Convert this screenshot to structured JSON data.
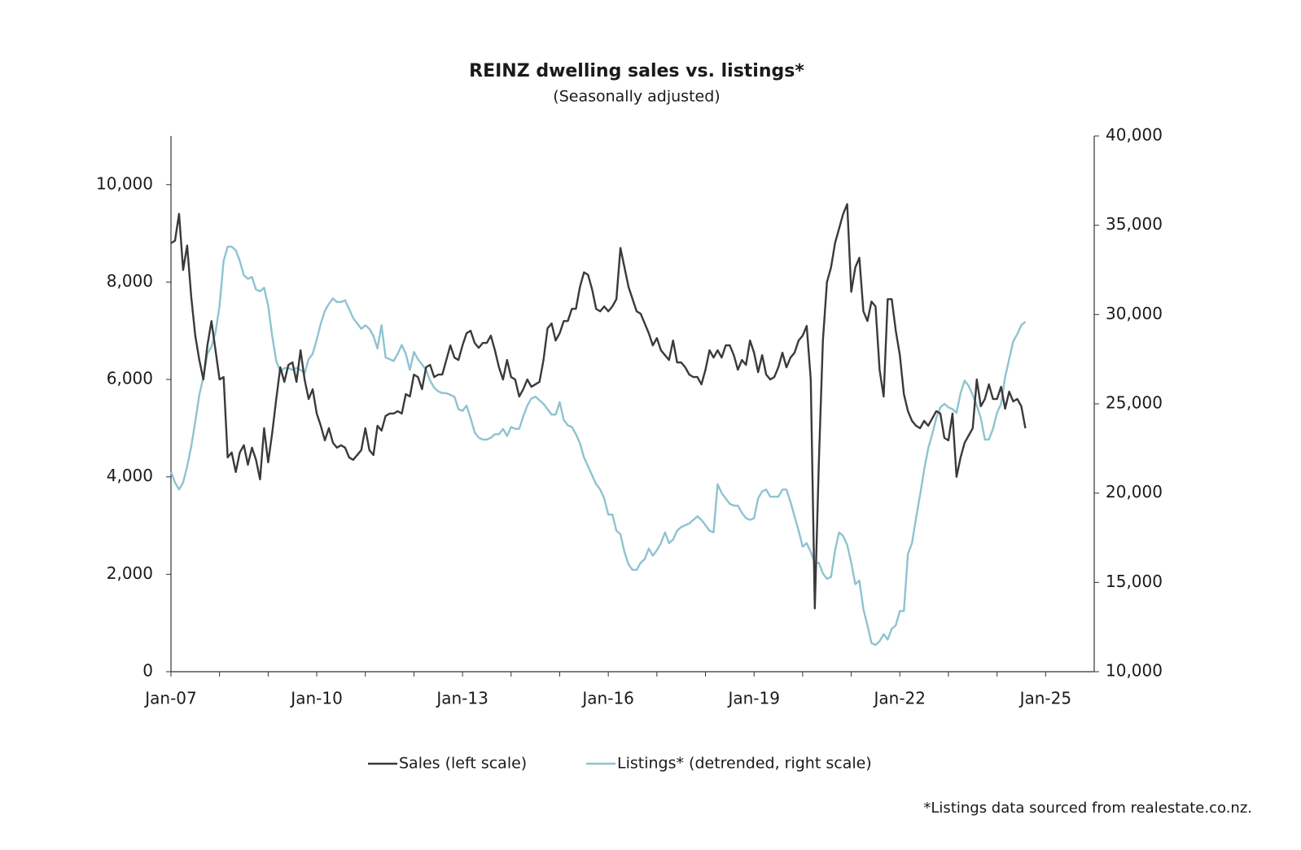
{
  "chart_data": {
    "type": "line",
    "title": "REINZ dwelling sales vs. listings*",
    "subtitle": "(Seasonally adjusted)",
    "footnote": "*Listings data sourced from realestate.co.nz.",
    "categories": [
      "Jan-07",
      null,
      null,
      null,
      null,
      null,
      null,
      null,
      null,
      null,
      null,
      null,
      null,
      null,
      null,
      null,
      null,
      null,
      null,
      null,
      null,
      null,
      null,
      null,
      null,
      null,
      null,
      null,
      null,
      null,
      null,
      null,
      null,
      null,
      null,
      null,
      "Jan-10",
      null,
      null,
      null,
      null,
      null,
      null,
      null,
      null,
      null,
      null,
      null,
      null,
      null,
      null,
      null,
      null,
      null,
      null,
      null,
      null,
      null,
      null,
      null,
      null,
      null,
      null,
      null,
      null,
      null,
      null,
      null,
      null,
      null,
      null,
      null,
      "Jan-13",
      null,
      null,
      null,
      null,
      null,
      null,
      null,
      null,
      null,
      null,
      null,
      null,
      null,
      null,
      null,
      null,
      null,
      null,
      null,
      null,
      null,
      null,
      null,
      null,
      null,
      null,
      null,
      null,
      null,
      null,
      null,
      null,
      null,
      null,
      null,
      "Jan-16",
      null,
      null,
      null,
      null,
      null,
      null,
      null,
      null,
      null,
      null,
      null,
      null,
      null,
      null,
      null,
      null,
      null,
      null,
      null,
      null,
      null,
      null,
      null,
      null,
      null,
      null,
      null,
      null,
      null,
      null,
      null,
      null,
      null,
      null,
      null,
      "Jan-19",
      null,
      null,
      null,
      null,
      null,
      null,
      null,
      null,
      null,
      null,
      null,
      null,
      null,
      null,
      null,
      null,
      null,
      null,
      null,
      null,
      null,
      null,
      null,
      null,
      null,
      null,
      null,
      null,
      null,
      null,
      null,
      null,
      null,
      null,
      null,
      "Jan-22",
      null,
      null,
      null,
      null,
      null,
      null,
      null,
      null,
      null,
      null,
      null,
      null,
      null,
      null,
      null,
      null,
      null,
      null,
      null,
      null,
      null,
      null,
      null,
      null,
      null,
      null,
      null,
      null,
      null,
      null,
      null,
      null,
      null,
      null,
      null,
      "Jan-25",
      null,
      null,
      null,
      null,
      null,
      null,
      null,
      null,
      null,
      null,
      null
    ],
    "series": [
      {
        "name": "Sales (left scale)",
        "color": "#3a3a3c",
        "values": [
          8800,
          8850,
          9400,
          8250,
          8750,
          7700,
          6900,
          6400,
          6000,
          6700,
          7200,
          6600,
          6000,
          6050,
          4400,
          4500,
          4100,
          4500,
          4650,
          4250,
          4600,
          4350,
          3950,
          5000,
          4300,
          4900,
          5600,
          6250,
          5950,
          6300,
          6350,
          5950,
          6600,
          6000,
          5600,
          5800,
          5300,
          5050,
          4750,
          5000,
          4700,
          4600,
          4650,
          4600,
          4400,
          4350,
          4450,
          4550,
          5000,
          4550,
          4450,
          5050,
          4950,
          5250,
          5300,
          5300,
          5350,
          5300,
          5700,
          5650,
          6100,
          6050,
          5800,
          6250,
          6300,
          6050,
          6100,
          6100,
          6400,
          6700,
          6450,
          6400,
          6700,
          6950,
          7000,
          6750,
          6650,
          6750,
          6750,
          6900,
          6600,
          6250,
          6000,
          6400,
          6050,
          6000,
          5650,
          5800,
          6000,
          5850,
          5900,
          5950,
          6400,
          7050,
          7150,
          6800,
          6950,
          7200,
          7200,
          7450,
          7450,
          7900,
          8200,
          8150,
          7850,
          7450,
          7400,
          7500,
          7400,
          7500,
          7650,
          8700,
          8300,
          7900,
          7650,
          7400,
          7350,
          7150,
          6950,
          6700,
          6850,
          6600,
          6500,
          6400,
          6800,
          6350,
          6350,
          6250,
          6100,
          6050,
          6050,
          5900,
          6200,
          6600,
          6450,
          6600,
          6450,
          6700,
          6700,
          6500,
          6200,
          6400,
          6300,
          6800,
          6550,
          6150,
          6500,
          6100,
          6000,
          6050,
          6250,
          6550,
          6250,
          6450,
          6550,
          6800,
          6900,
          7100,
          6000,
          1300,
          4300,
          6800,
          8000,
          8300,
          8800,
          9100,
          9400,
          9600,
          7800,
          8300,
          8500,
          7400,
          7200,
          7600,
          7500,
          6200,
          5650,
          7650,
          7650,
          7000,
          6500,
          5700,
          5350,
          5150,
          5050,
          5000,
          5150,
          5050,
          5200,
          5350,
          5300,
          4800,
          4750,
          5300,
          4000,
          4400,
          4700,
          4850,
          5000,
          6000,
          5450,
          5600,
          5900,
          5600,
          5600,
          5850,
          5400,
          5750,
          5550,
          5600,
          5450,
          5000,
          null,
          null,
          null,
          null,
          null,
          null,
          null,
          null,
          null,
          null,
          null,
          null,
          null,
          null,
          null,
          null
        ]
      },
      {
        "name": "Listings* (detrended, right scale)",
        "color": "#8ec3d0",
        "axis": "y2",
        "values": [
          21200,
          20600,
          20200,
          20600,
          21500,
          22600,
          24000,
          25500,
          26500,
          27800,
          28200,
          29000,
          30500,
          33000,
          33800,
          33800,
          33600,
          33000,
          32200,
          32000,
          32100,
          31400,
          31300,
          31500,
          30500,
          28800,
          27400,
          26800,
          27000,
          27000,
          26900,
          27000,
          26900,
          26700,
          27500,
          27800,
          28600,
          29500,
          30200,
          30600,
          30900,
          30700,
          30700,
          30800,
          30300,
          29800,
          29500,
          29200,
          29400,
          29200,
          28800,
          28100,
          29400,
          27600,
          27500,
          27400,
          27800,
          28300,
          27800,
          26900,
          27900,
          27500,
          27200,
          26900,
          26300,
          25900,
          25700,
          25600,
          25600,
          25500,
          25400,
          24700,
          24600,
          24900,
          24200,
          23400,
          23100,
          23000,
          23000,
          23100,
          23300,
          23300,
          23600,
          23200,
          23700,
          23600,
          23600,
          24300,
          24900,
          25300,
          25400,
          25200,
          25000,
          24700,
          24400,
          24400,
          25100,
          24100,
          23800,
          23700,
          23300,
          22800,
          22000,
          21500,
          21000,
          20500,
          20200,
          19700,
          18800,
          18800,
          17900,
          17700,
          16700,
          16000,
          15700,
          15700,
          16100,
          16300,
          16900,
          16500,
          16800,
          17200,
          17800,
          17200,
          17400,
          17900,
          18100,
          18200,
          18300,
          18500,
          18700,
          18500,
          18200,
          17900,
          17800,
          20500,
          20000,
          19700,
          19400,
          19300,
          19300,
          18900,
          18600,
          18500,
          18600,
          19700,
          20100,
          20200,
          19800,
          19800,
          19800,
          20200,
          20200,
          19500,
          18700,
          17900,
          17000,
          17200,
          16700,
          16100,
          16100,
          15500,
          15200,
          15300,
          16800,
          17800,
          17600,
          17100,
          16100,
          14900,
          15100,
          13500,
          12600,
          11600,
          11500,
          11700,
          12100,
          11800,
          12400,
          12600,
          13400,
          13400,
          16600,
          17200,
          18600,
          19900,
          21300,
          22500,
          23300,
          24200,
          24800,
          25000,
          24800,
          24700,
          24500,
          25600,
          26300,
          26000,
          25500,
          24900,
          24200,
          23000,
          23000,
          23600,
          24500,
          25000,
          26500,
          27500,
          28500,
          28900,
          29400,
          29600,
          null,
          null,
          null,
          null,
          null,
          null,
          null,
          null,
          null,
          null,
          null,
          null,
          null,
          null,
          null,
          null
        ]
      }
    ],
    "ylim": [
      0,
      11000
    ],
    "yticks": [
      0,
      {
        "value": 2000,
        "label": "2,000"
      },
      {
        "value": 4000,
        "label": "4,000"
      },
      {
        "value": 6000,
        "label": "6,000"
      },
      {
        "value": 8000,
        "label": "8,000"
      },
      {
        "value": 10000,
        "label": "10,000"
      }
    ],
    "y2lim": [
      10000,
      40000
    ],
    "y2ticks": [
      {
        "value": 10000,
        "label": "10,000"
      },
      {
        "value": 15000,
        "label": "15,000"
      },
      {
        "value": 20000,
        "label": "20,000"
      },
      {
        "value": 25000,
        "label": "25,000"
      },
      {
        "value": 30000,
        "label": "30,000"
      },
      {
        "value": 35000,
        "label": "35,000"
      },
      {
        "value": 40000,
        "label": "40,000"
      }
    ],
    "legend": "bottom"
  }
}
